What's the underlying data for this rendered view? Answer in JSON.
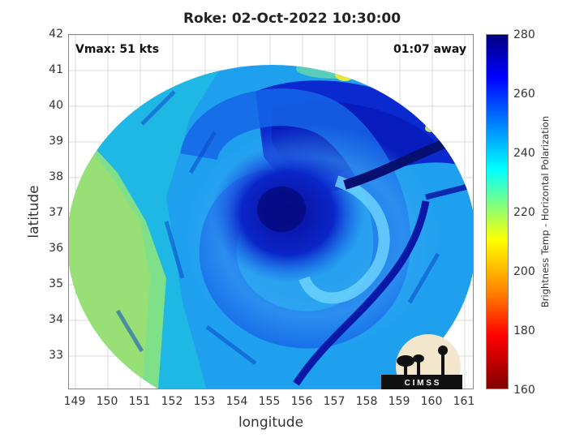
{
  "title": "Roke: 02-Oct-2022 10:30:00",
  "vmax": "Vmax: 51 kts",
  "away": "01:07 away",
  "xlabel": "longitude",
  "ylabel": "latitude",
  "colorbar_label": "Brightness Temp - Horizontal Polarization",
  "logo_text": "C I M S S",
  "x_ticks": [
    "149",
    "150",
    "151",
    "152",
    "153",
    "154",
    "155",
    "156",
    "157",
    "158",
    "159",
    "160",
    "161"
  ],
  "y_ticks": [
    "33",
    "34",
    "35",
    "36",
    "37",
    "38",
    "39",
    "40",
    "41",
    "42"
  ],
  "colorbar_ticks": [
    "160",
    "180",
    "200",
    "220",
    "240",
    "260",
    "280"
  ],
  "map_data": {
    "lon_range": [
      148.8,
      161.3
    ],
    "lat_range": [
      32.1,
      42
    ],
    "colorbar_range": [
      160,
      280
    ],
    "storm_center": [
      155.6,
      37.1
    ]
  }
}
